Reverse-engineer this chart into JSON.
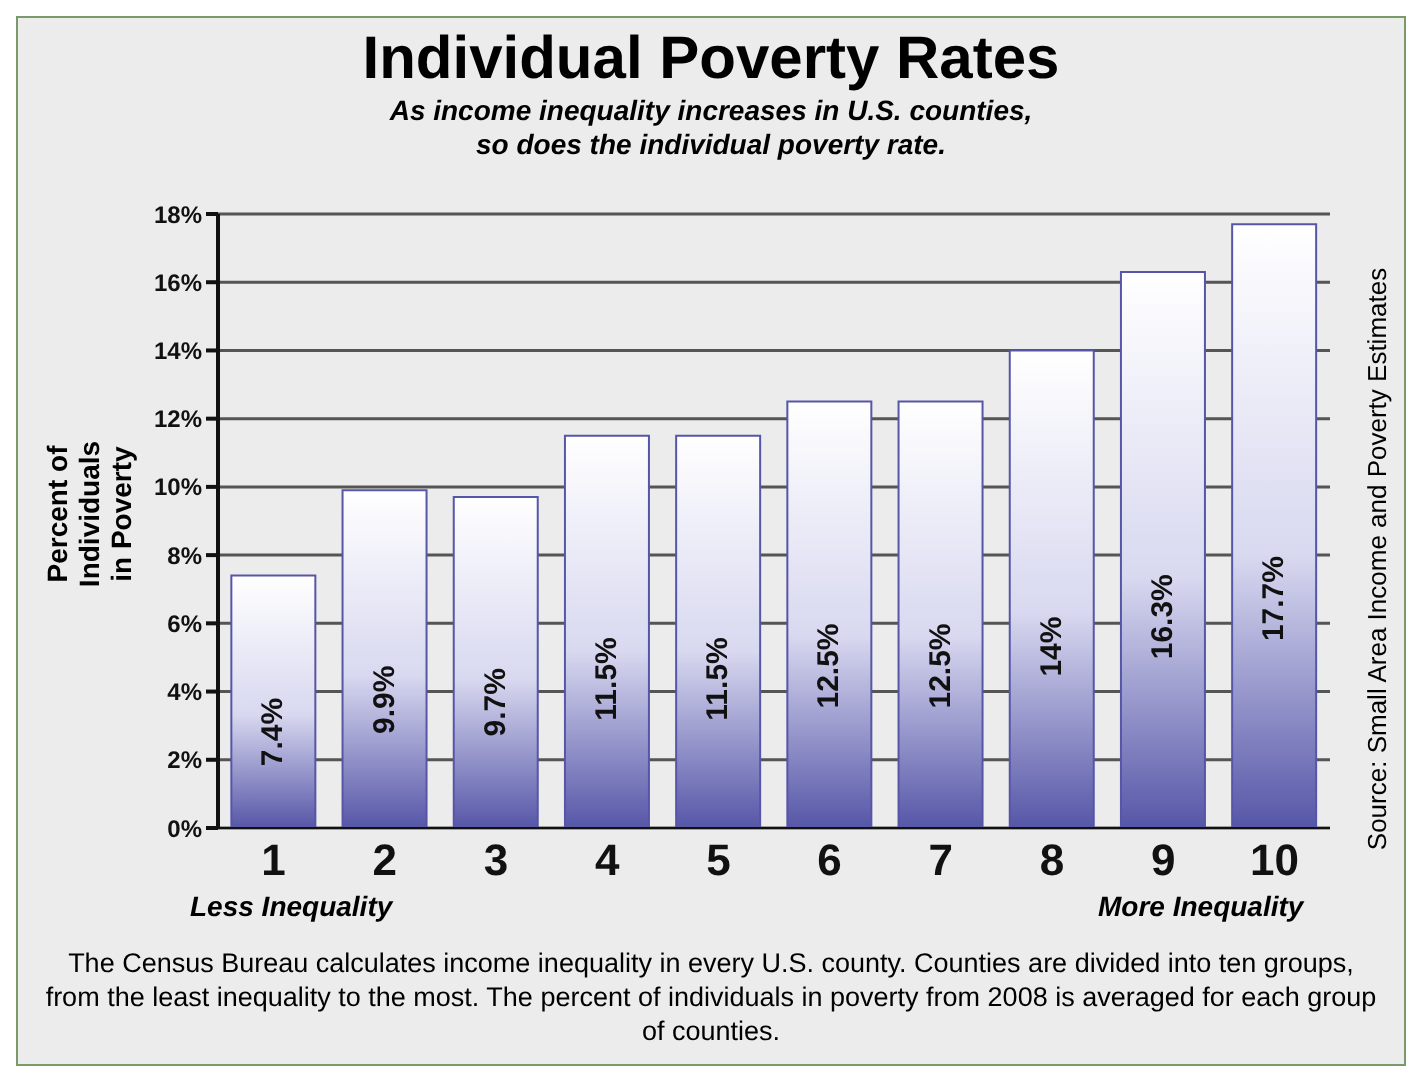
{
  "chart_data": {
    "type": "bar",
    "title": "Individual Poverty Rates",
    "subtitle": "As income inequality increases in U.S. counties,\nso does the individual poverty rate.",
    "ylabel": "Percent of Individuals in Poverty",
    "categories": [
      "1",
      "2",
      "3",
      "4",
      "5",
      "6",
      "7",
      "8",
      "9",
      "10"
    ],
    "values": [
      7.4,
      9.9,
      9.7,
      11.5,
      11.5,
      12.5,
      12.5,
      14,
      16.3,
      17.7
    ],
    "value_labels": [
      "7.4%",
      "9.9%",
      "9.7%",
      "11.5%",
      "11.5%",
      "12.5%",
      "12.5%",
      "14%",
      "16.3%",
      "17.7%"
    ],
    "color": "#5656a8",
    "ylim": [
      0,
      18
    ],
    "yticks": [
      {
        "value": 0,
        "label": "0%"
      },
      {
        "value": 2,
        "label": "2%"
      },
      {
        "value": 4,
        "label": "4%"
      },
      {
        "value": 6,
        "label": "6%"
      },
      {
        "value": 8,
        "label": "8%"
      },
      {
        "value": 10,
        "label": "10%"
      },
      {
        "value": 12,
        "label": "12%"
      },
      {
        "value": 14,
        "label": "14%"
      },
      {
        "value": 16,
        "label": "16%"
      },
      {
        "value": 18,
        "label": "18%"
      }
    ],
    "grid": "y",
    "annotations": [
      "Less Inequality",
      "More Inequality",
      "The Census Bureau calculates income inequality in every U.S. county. Counties are divided into ten groups, from the least inequality to the most. The percent of individuals in poverty from 2008 is averaged for each group of counties.",
      "Source: Small Area Income and Poverty Estimates"
    ]
  }
}
